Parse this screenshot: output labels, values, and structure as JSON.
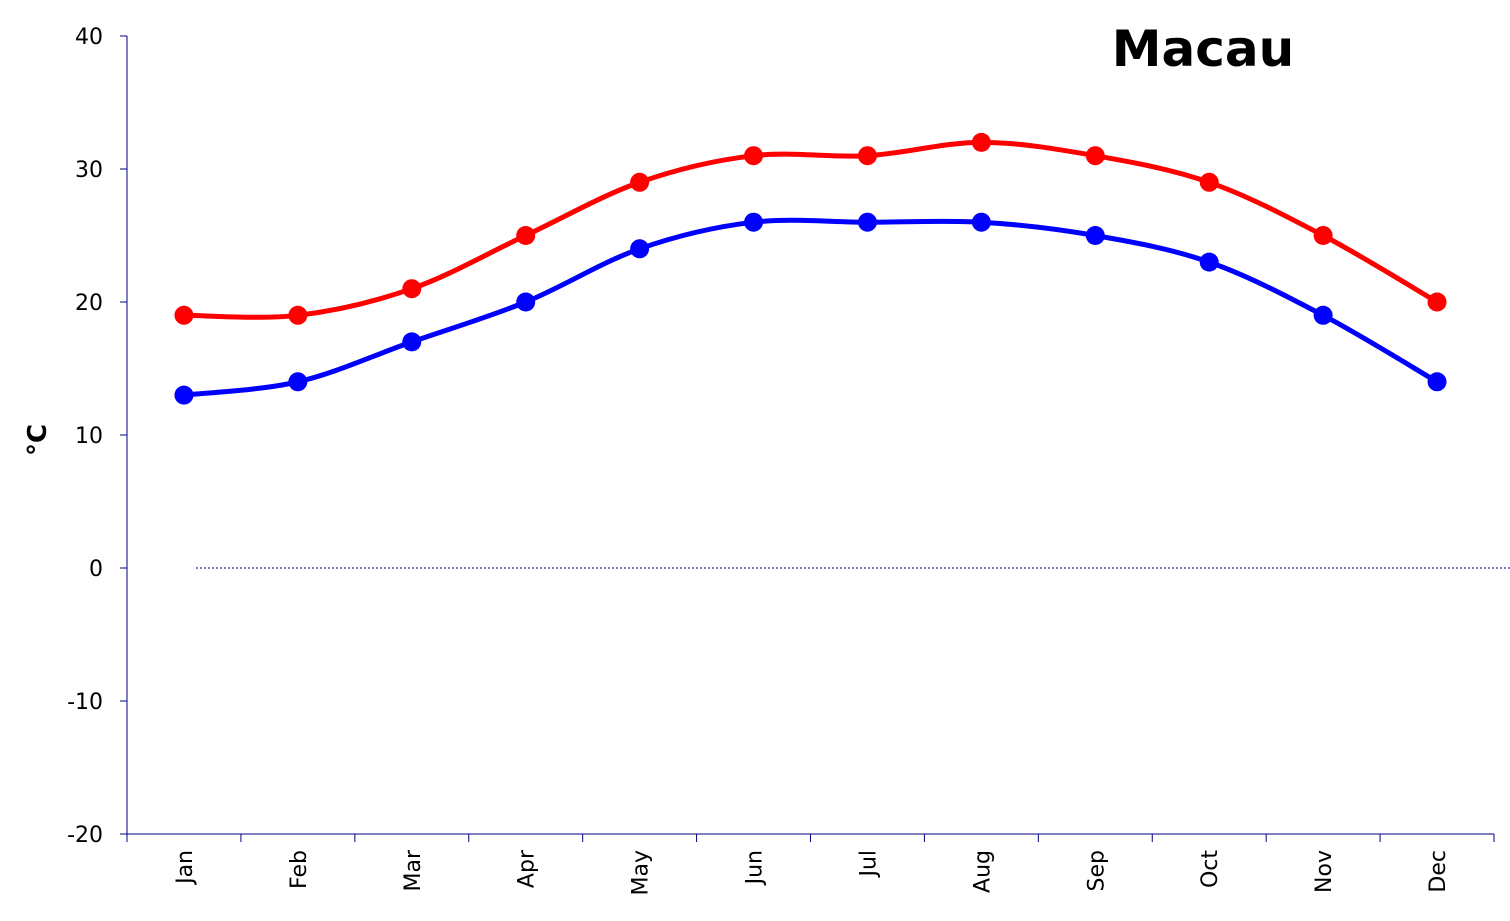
{
  "chart_data": {
    "type": "line",
    "title": "Macau",
    "xlabel": "",
    "ylabel": "°C",
    "categories": [
      "Jan",
      "Feb",
      "Mar",
      "Apr",
      "May",
      "Jun",
      "Jul",
      "Aug",
      "Sep",
      "Oct",
      "Nov",
      "Dec"
    ],
    "ylim": [
      -20,
      40
    ],
    "yticks": [
      "-20",
      "-10",
      "0",
      "10",
      "20",
      "30",
      "40"
    ],
    "grid": false,
    "legend": "none",
    "zero_line": "dotted",
    "series": [
      {
        "color": "#ff0000",
        "values": [
          19,
          19,
          21,
          25,
          29,
          31,
          31,
          32,
          31,
          29,
          25,
          20
        ]
      },
      {
        "color": "#0000ff",
        "values": [
          13,
          14,
          17,
          20,
          24,
          26,
          26,
          26,
          25,
          23,
          19,
          14
        ]
      }
    ]
  }
}
